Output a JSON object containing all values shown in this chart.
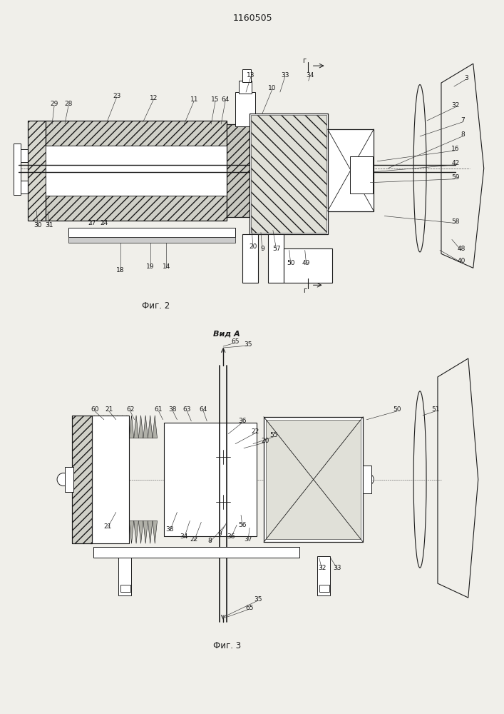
{
  "title": "1160505",
  "bg_color": "#f0efea",
  "fig_color": "#f0efea",
  "line_color": "#1a1a1a",
  "fig1_label": "Фиг. 2",
  "fig2_label": "Фиг. 3",
  "view_label": "Вид А"
}
